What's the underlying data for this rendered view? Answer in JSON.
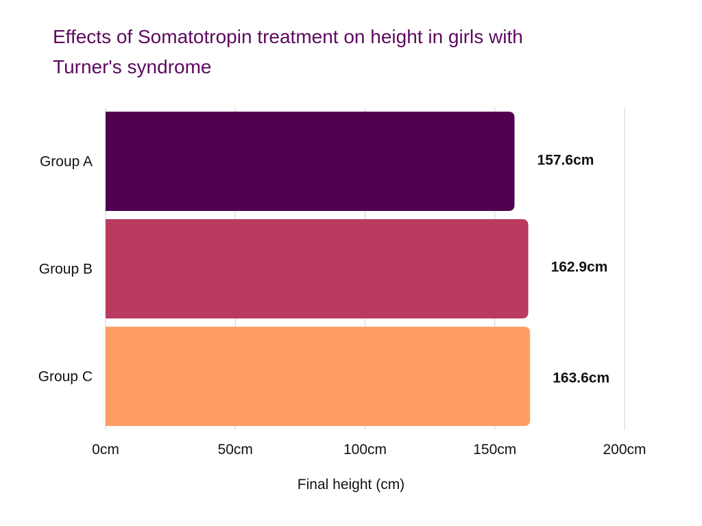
{
  "chart_data": {
    "type": "bar",
    "orientation": "horizontal",
    "title": "Effects of Somatotropin treatment on height in girls with Turner's syndrome",
    "categories": [
      "Group A",
      "Group B",
      "Group C"
    ],
    "values": [
      157.6,
      162.9,
      163.6
    ],
    "value_labels": [
      "157.6cm",
      "162.9cm",
      "163.6cm"
    ],
    "xlabel": "Final height (cm)",
    "ylabel": "",
    "xlim": [
      0,
      200
    ],
    "x_ticks": [
      0,
      50,
      100,
      150,
      200
    ],
    "x_tick_labels": [
      "0cm",
      "50cm",
      "100cm",
      "150cm",
      "200cm"
    ],
    "grid": "vertical",
    "legend": "none",
    "colors": [
      "#4f004f",
      "#b93b5f",
      "#ff9e63"
    ],
    "grid_color": "#d0d0d0"
  }
}
